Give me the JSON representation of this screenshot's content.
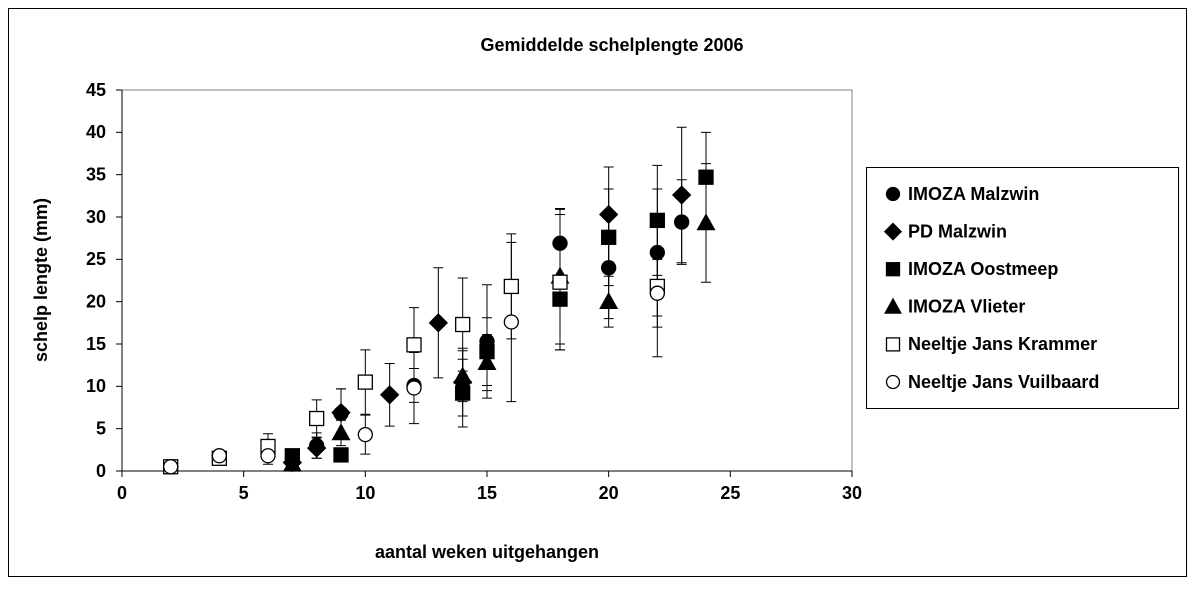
{
  "chart_data": {
    "type": "scatter",
    "title": "Gemiddelde schelplengte 2006",
    "x_label": "aantal weken uitgehangen",
    "y_label": "schelp lengte (mm)",
    "xlim": [
      0,
      30
    ],
    "xticks": [
      0,
      5,
      10,
      15,
      20,
      25,
      30
    ],
    "ylim": [
      0,
      45
    ],
    "yticks": [
      0,
      5,
      10,
      15,
      20,
      25,
      30,
      35,
      40,
      45
    ],
    "grid": false,
    "legend": "right",
    "series": [
      {
        "name": "IMOZA Malzwin",
        "color": "#000000",
        "marker": "circle",
        "filled": true,
        "x": [
          2,
          4,
          8,
          9,
          12,
          15,
          18,
          20,
          22,
          23
        ],
        "values": [
          0.5,
          1.8,
          3,
          6.8,
          10.1,
          15.3,
          26.9,
          24,
          25.8,
          29.4
        ],
        "errors": [
          0.3,
          0.4,
          1.5,
          2.9,
          2,
          6.7,
          4,
          6,
          7.5,
          5
        ]
      },
      {
        "name": "PD Malzwin",
        "color": "#000000",
        "marker": "diamond",
        "filled": true,
        "x": [
          7,
          8,
          9,
          11,
          13,
          14,
          20,
          23
        ],
        "values": [
          1,
          2.7,
          6.9,
          9,
          17.5,
          10.5,
          30.3,
          32.6
        ],
        "errors": [
          0.5,
          1.2,
          2.8,
          3.7,
          6.5,
          4,
          5.6,
          8
        ]
      },
      {
        "name": "IMOZA Oostmeep",
        "color": "#000000",
        "marker": "square",
        "filled": true,
        "x": [
          7,
          9,
          14,
          15,
          18,
          20,
          22,
          24
        ],
        "values": [
          1.8,
          1.9,
          9.2,
          14.1,
          20.3,
          27.6,
          29.6,
          34.7
        ],
        "errors": [
          0.6,
          0.6,
          4,
          4,
          6,
          5.7,
          6.5,
          5.3
        ]
      },
      {
        "name": "IMOZA Vlieter",
        "color": "#000000",
        "marker": "triangle",
        "filled": true,
        "x": [
          7,
          9,
          14,
          15,
          18,
          20,
          24
        ],
        "values": [
          0.8,
          4.5,
          11.2,
          12.8,
          23,
          20,
          29.3
        ],
        "errors": [
          0.4,
          1.5,
          3,
          3.3,
          8,
          3,
          7
        ]
      },
      {
        "name": "Neeltje Jans Krammer",
        "color": "#000000",
        "marker": "square",
        "filled": false,
        "x": [
          2,
          4,
          6,
          8,
          10,
          12,
          14,
          16,
          18,
          22
        ],
        "values": [
          0.5,
          1.5,
          2.9,
          6.2,
          10.5,
          14.9,
          17.3,
          21.8,
          22.3,
          21.8
        ],
        "errors": [
          0.3,
          0.5,
          1.5,
          2.2,
          3.8,
          4.4,
          5.5,
          6.2,
          8,
          8.3
        ]
      },
      {
        "name": "Neeltje Jans Vuilbaard",
        "color": "#000000",
        "marker": "circle",
        "filled": false,
        "x": [
          2,
          4,
          6,
          10,
          12,
          16,
          22
        ],
        "values": [
          0.5,
          1.8,
          1.8,
          4.3,
          9.8,
          17.6,
          21
        ],
        "errors": [
          0.3,
          0.4,
          1,
          2.3,
          4.2,
          9.4,
          4
        ]
      }
    ]
  }
}
